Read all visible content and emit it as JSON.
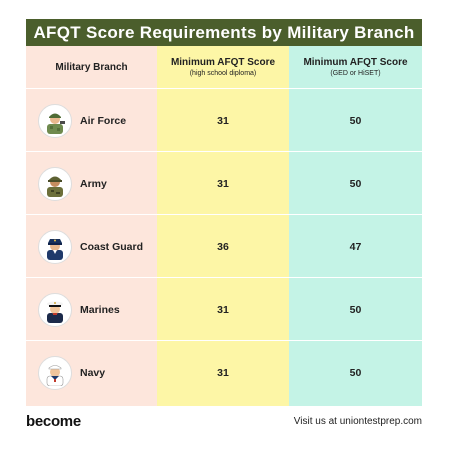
{
  "title": "AFQT Score Requirements by Military Branch",
  "columns": {
    "branch": "Military Branch",
    "hs_title": "Minimum AFQT Score",
    "hs_subtitle": "(high school diploma)",
    "ged_title": "Minimum AFQT Score",
    "ged_subtitle": "(GED or HiSET)"
  },
  "rows": [
    {
      "branch": "Air Force",
      "hs": "31",
      "ged": "50",
      "icon": "air-force-soldier-icon"
    },
    {
      "branch": "Army",
      "hs": "31",
      "ged": "50",
      "icon": "army-soldier-icon"
    },
    {
      "branch": "Coast Guard",
      "hs": "36",
      "ged": "47",
      "icon": "coast-guard-officer-icon"
    },
    {
      "branch": "Marines",
      "hs": "31",
      "ged": "50",
      "icon": "marine-officer-icon"
    },
    {
      "branch": "Navy",
      "hs": "31",
      "ged": "50",
      "icon": "navy-sailor-icon"
    }
  ],
  "footer": {
    "logo": "become",
    "visit": "Visit us at uniontestprep.com"
  },
  "colors": {
    "title_bg": "#4b5e2c",
    "branch_col": "#fde6dc",
    "hs_col": "#fdf6a6",
    "ged_col": "#c4f3e6"
  }
}
